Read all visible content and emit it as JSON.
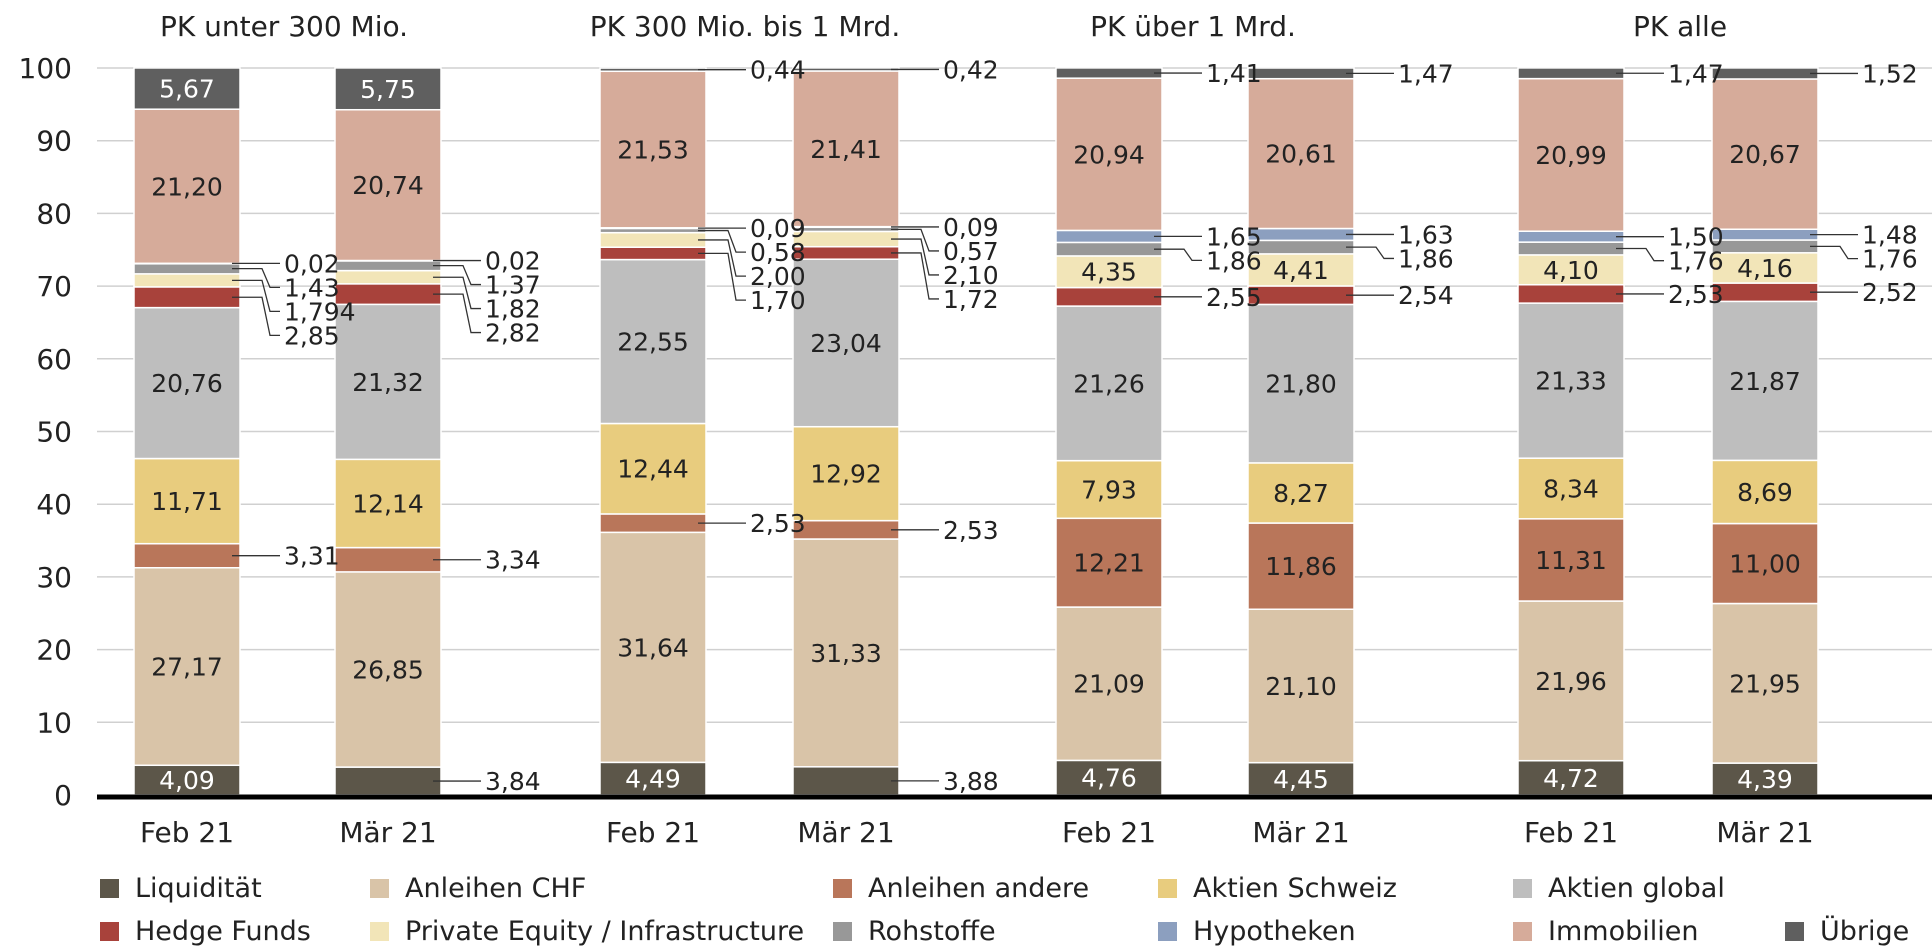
{
  "chart_data": {
    "type": "bar",
    "stacked": true,
    "ylim": [
      0,
      100
    ],
    "yticks": [
      "0",
      "10",
      "20",
      "30",
      "40",
      "50",
      "60",
      "70",
      "80",
      "90",
      "100"
    ],
    "grid": true,
    "legend_position": "bottom",
    "groups": [
      {
        "title": "PK unter 300 Mio.",
        "bars": [
          {
            "label": "Feb 21",
            "values": [
              4.09,
              27.17,
              3.31,
              11.71,
              20.76,
              2.85,
              1.794,
              1.43,
              0.02,
              21.2,
              5.67
            ],
            "labels": [
              "4,09",
              "27,17",
              "3,31",
              "11,71",
              "20,76",
              "2,85",
              "1,794",
              "1,43",
              "0,02",
              "21,20",
              "5,67"
            ]
          },
          {
            "label": "Mär 21",
            "values": [
              3.84,
              26.85,
              3.34,
              12.14,
              21.32,
              2.82,
              1.82,
              1.37,
              0.02,
              20.74,
              5.75
            ],
            "labels": [
              "3,84",
              "26,85",
              "3,34",
              "12,14",
              "21,32",
              "2,82",
              "1,82",
              "1,37",
              "0,02",
              "20,74",
              "5,75"
            ]
          }
        ]
      },
      {
        "title": "PK 300 Mio. bis 1 Mrd.",
        "bars": [
          {
            "label": "Feb 21",
            "values": [
              4.49,
              31.64,
              2.53,
              12.44,
              22.55,
              1.7,
              2.0,
              0.58,
              0.09,
              21.53,
              0.44
            ],
            "labels": [
              "4,49",
              "31,64",
              "2,53",
              "12,44",
              "22,55",
              "1,70",
              "2,00",
              "0,58",
              "0,09",
              "21,53",
              "0,44"
            ]
          },
          {
            "label": "Mär 21",
            "values": [
              3.88,
              31.33,
              2.53,
              12.92,
              23.04,
              1.72,
              2.1,
              0.57,
              0.09,
              21.41,
              0.42
            ],
            "labels": [
              "3,88",
              "31,33",
              "2,53",
              "12,92",
              "23,04",
              "1,72",
              "2,10",
              "0,57",
              "0,09",
              "21,41",
              "0,42"
            ]
          }
        ]
      },
      {
        "title": "PK über 1 Mrd.",
        "bars": [
          {
            "label": "Feb 21",
            "values": [
              4.76,
              21.09,
              12.21,
              7.93,
              21.26,
              2.55,
              4.35,
              1.86,
              1.65,
              20.94,
              1.41
            ],
            "labels": [
              "4,76",
              "21,09",
              "12,21",
              "7,93",
              "21,26",
              "2,55",
              "4,35",
              "1,86",
              "1,65",
              "20,94",
              "1,41"
            ]
          },
          {
            "label": "Mär 21",
            "values": [
              4.45,
              21.1,
              11.86,
              8.27,
              21.8,
              2.54,
              4.41,
              1.86,
              1.63,
              20.61,
              1.47
            ],
            "labels": [
              "4,45",
              "21,10",
              "11,86",
              "8,27",
              "21,80",
              "2,54",
              "4,41",
              "1,86",
              "1,63",
              "20,61",
              "1,47"
            ]
          }
        ]
      },
      {
        "title": "PK alle",
        "bars": [
          {
            "label": "Feb 21",
            "values": [
              4.72,
              21.96,
              11.31,
              8.34,
              21.33,
              2.53,
              4.1,
              1.76,
              1.5,
              20.99,
              1.47
            ],
            "labels": [
              "4,72",
              "21,96",
              "11,31",
              "8,34",
              "21,33",
              "2,53",
              "4,10",
              "1,76",
              "1,50",
              "20,99",
              "1,47"
            ]
          },
          {
            "label": "Mär 21",
            "values": [
              4.39,
              21.95,
              11.0,
              8.69,
              21.87,
              2.52,
              4.16,
              1.76,
              1.48,
              20.67,
              1.52
            ],
            "labels": [
              "4,39",
              "21,95",
              "11,00",
              "8,69",
              "21,87",
              "2,52",
              "4,16",
              "1,76",
              "1,48",
              "20,67",
              "1,52"
            ]
          }
        ]
      }
    ],
    "series": [
      {
        "name": "Liquidität",
        "color": "#5c5649"
      },
      {
        "name": "Anleihen CHF",
        "color": "#d9c4a8"
      },
      {
        "name": "Anleihen andere",
        "color": "#b9765a"
      },
      {
        "name": "Aktien Schweiz",
        "color": "#e8cc7e"
      },
      {
        "name": "Aktien global",
        "color": "#bebebe"
      },
      {
        "name": "Hedge Funds",
        "color": "#a8423b"
      },
      {
        "name": "Private Equity / Infrastructure",
        "color": "#f2e5b8"
      },
      {
        "name": "Rohstoffe",
        "color": "#989898"
      },
      {
        "name": "Hypotheken",
        "color": "#8c9fbf"
      },
      {
        "name": "Immobilien",
        "color": "#d6ab9a"
      },
      {
        "name": "Übrige",
        "color": "#5f5f5f"
      }
    ],
    "legend_order": [
      0,
      1,
      2,
      3,
      4,
      5,
      6,
      7,
      8,
      9,
      10
    ]
  }
}
